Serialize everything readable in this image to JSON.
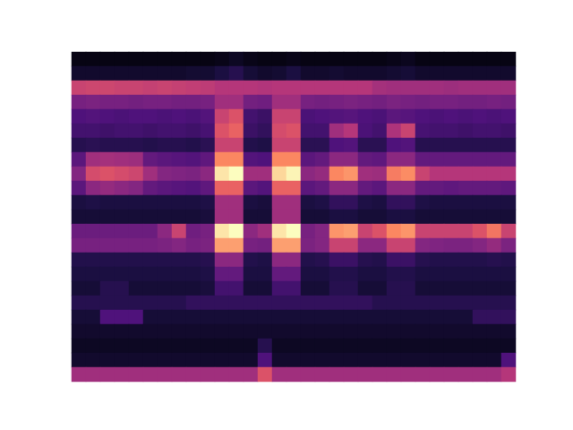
{
  "chart_data": {
    "type": "heatmap",
    "color": "magma",
    "tick_labels": false,
    "value_range": [
      0,
      100
    ],
    "cells": [
      [
        3,
        3,
        3,
        3,
        3,
        3,
        3,
        3,
        3,
        3,
        4,
        6,
        4,
        3,
        3,
        4,
        3,
        3,
        3,
        3,
        3,
        3,
        4,
        5,
        3,
        3,
        3,
        3,
        3,
        3,
        3
      ],
      [
        8,
        8,
        8,
        8,
        8,
        8,
        8,
        8,
        9,
        9,
        12,
        15,
        10,
        8,
        9,
        12,
        8,
        8,
        9,
        8,
        8,
        8,
        9,
        10,
        8,
        8,
        8,
        8,
        8,
        8,
        8
      ],
      [
        55,
        56,
        56,
        55,
        55,
        54,
        55,
        54,
        53,
        52,
        50,
        50,
        50,
        49,
        50,
        50,
        50,
        50,
        50,
        50,
        50,
        46,
        45,
        45,
        45,
        45,
        44,
        45,
        45,
        45,
        45
      ],
      [
        35,
        36,
        35,
        35,
        34,
        35,
        35,
        34,
        34,
        35,
        45,
        45,
        34,
        33,
        45,
        45,
        35,
        34,
        35,
        36,
        35,
        34,
        36,
        35,
        34,
        35,
        35,
        34,
        34,
        35,
        34
      ],
      [
        25,
        26,
        25,
        24,
        25,
        25,
        24,
        25,
        24,
        26,
        55,
        60,
        22,
        20,
        55,
        55,
        24,
        25,
        26,
        27,
        25,
        24,
        28,
        27,
        25,
        24,
        25,
        24,
        25,
        24,
        25
      ],
      [
        22,
        22,
        21,
        22,
        22,
        21,
        22,
        22,
        21,
        23,
        60,
        65,
        20,
        18,
        58,
        60,
        22,
        22,
        45,
        50,
        24,
        22,
        48,
        55,
        23,
        22,
        22,
        21,
        22,
        22,
        21
      ],
      [
        15,
        16,
        15,
        15,
        15,
        14,
        15,
        15,
        14,
        16,
        55,
        55,
        14,
        13,
        55,
        55,
        16,
        16,
        25,
        26,
        16,
        16,
        25,
        26,
        15,
        15,
        15,
        15,
        15,
        15,
        15
      ],
      [
        28,
        45,
        46,
        45,
        44,
        30,
        28,
        27,
        26,
        29,
        75,
        75,
        26,
        25,
        75,
        75,
        28,
        30,
        40,
        40,
        30,
        29,
        40,
        40,
        30,
        30,
        30,
        30,
        30,
        30,
        30
      ],
      [
        38,
        58,
        60,
        58,
        56,
        45,
        38,
        37,
        36,
        40,
        95,
        100,
        45,
        45,
        92,
        98,
        40,
        42,
        75,
        78,
        45,
        44,
        72,
        76,
        55,
        50,
        50,
        50,
        50,
        50,
        50
      ],
      [
        28,
        40,
        42,
        40,
        38,
        30,
        28,
        27,
        26,
        29,
        65,
        65,
        28,
        26,
        65,
        65,
        28,
        30,
        40,
        40,
        30,
        28,
        40,
        40,
        30,
        30,
        29,
        30,
        30,
        30,
        29
      ],
      [
        12,
        13,
        12,
        12,
        12,
        12,
        12,
        12,
        12,
        13,
        45,
        45,
        12,
        11,
        45,
        45,
        12,
        13,
        18,
        18,
        13,
        12,
        18,
        18,
        13,
        12,
        12,
        12,
        12,
        12,
        12
      ],
      [
        10,
        10,
        10,
        10,
        10,
        10,
        10,
        10,
        10,
        11,
        45,
        45,
        10,
        10,
        45,
        45,
        10,
        10,
        12,
        12,
        10,
        10,
        12,
        12,
        10,
        10,
        10,
        10,
        10,
        10,
        10
      ],
      [
        32,
        32,
        32,
        32,
        32,
        32,
        40,
        55,
        33,
        35,
        95,
        100,
        40,
        45,
        95,
        100,
        35,
        38,
        78,
        80,
        55,
        60,
        75,
        78,
        55,
        55,
        55,
        55,
        60,
        70,
        55
      ],
      [
        35,
        35,
        35,
        35,
        35,
        35,
        36,
        38,
        35,
        36,
        80,
        80,
        35,
        34,
        80,
        80,
        36,
        38,
        55,
        55,
        40,
        40,
        55,
        55,
        38,
        37,
        36,
        36,
        38,
        42,
        36
      ],
      [
        14,
        14,
        14,
        14,
        14,
        14,
        14,
        14,
        14,
        15,
        40,
        40,
        14,
        13,
        40,
        40,
        14,
        15,
        20,
        20,
        15,
        14,
        20,
        20,
        15,
        14,
        14,
        14,
        14,
        15,
        14
      ],
      [
        12,
        12,
        12,
        12,
        12,
        12,
        12,
        12,
        12,
        13,
        30,
        30,
        12,
        12,
        30,
        30,
        12,
        12,
        14,
        14,
        12,
        12,
        14,
        14,
        12,
        12,
        12,
        12,
        12,
        12,
        12
      ],
      [
        10,
        10,
        15,
        15,
        10,
        10,
        10,
        10,
        10,
        11,
        22,
        22,
        10,
        10,
        22,
        22,
        10,
        10,
        15,
        15,
        10,
        10,
        15,
        15,
        10,
        10,
        10,
        10,
        10,
        10,
        10
      ],
      [
        15,
        15,
        15,
        15,
        15,
        15,
        15,
        15,
        18,
        18,
        18,
        18,
        18,
        18,
        18,
        18,
        18,
        18,
        18,
        18,
        18,
        15,
        15,
        15,
        15,
        15,
        15,
        15,
        15,
        15,
        15
      ],
      [
        10,
        10,
        25,
        25,
        25,
        10,
        10,
        10,
        10,
        10,
        10,
        10,
        10,
        10,
        10,
        10,
        10,
        10,
        10,
        10,
        10,
        10,
        10,
        10,
        10,
        10,
        10,
        10,
        18,
        18,
        18
      ],
      [
        8,
        8,
        8,
        8,
        8,
        8,
        8,
        8,
        8,
        8,
        8,
        8,
        8,
        8,
        8,
        8,
        8,
        8,
        8,
        8,
        8,
        8,
        8,
        8,
        8,
        8,
        8,
        8,
        8,
        8,
        8
      ],
      [
        6,
        6,
        6,
        6,
        6,
        6,
        6,
        6,
        6,
        6,
        6,
        6,
        6,
        15,
        6,
        6,
        6,
        6,
        6,
        6,
        6,
        6,
        6,
        6,
        6,
        6,
        6,
        6,
        6,
        6,
        6
      ],
      [
        8,
        8,
        8,
        8,
        8,
        8,
        8,
        8,
        8,
        8,
        8,
        8,
        8,
        25,
        8,
        8,
        8,
        8,
        8,
        8,
        8,
        8,
        8,
        8,
        8,
        8,
        8,
        8,
        8,
        8,
        25
      ],
      [
        45,
        45,
        45,
        45,
        45,
        45,
        45,
        45,
        45,
        45,
        45,
        45,
        45,
        60,
        45,
        45,
        45,
        45,
        45,
        45,
        45,
        45,
        45,
        45,
        45,
        45,
        45,
        45,
        45,
        45,
        50
      ]
    ]
  }
}
